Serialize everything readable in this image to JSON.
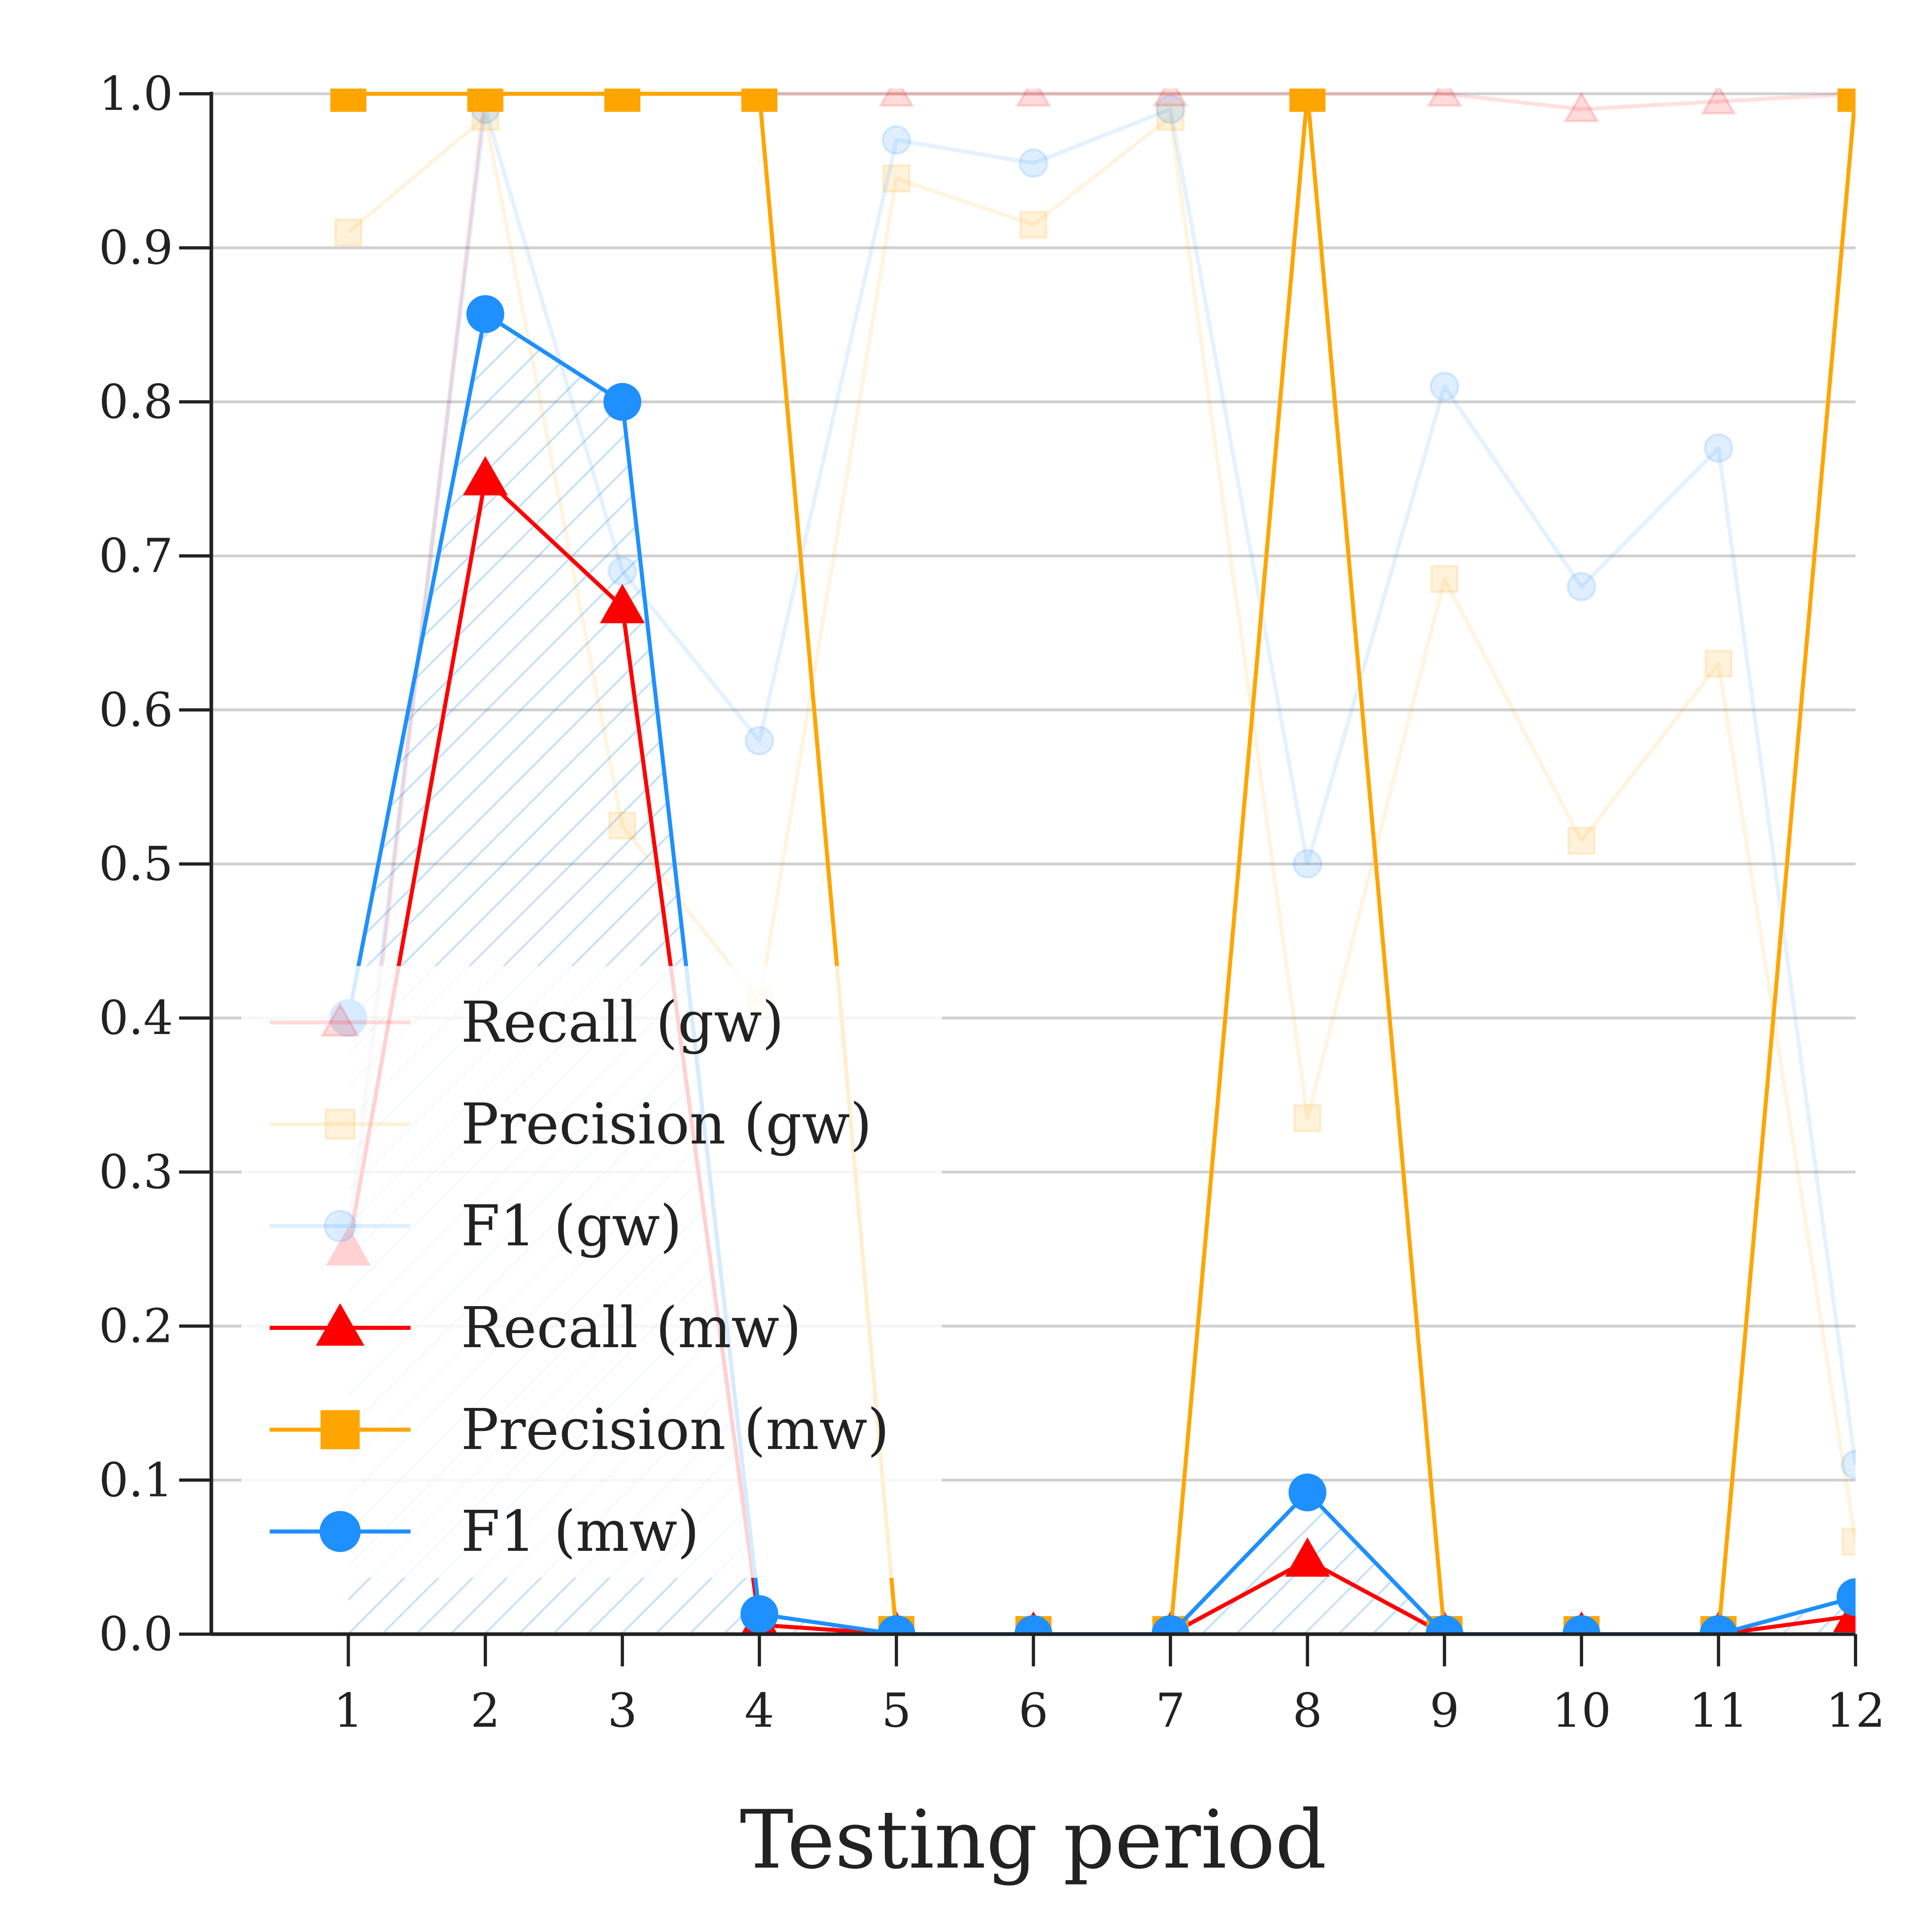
{
  "chart_data": {
    "type": "line",
    "title": "",
    "xlabel": "Testing period",
    "ylabel": "",
    "x": [
      1,
      2,
      3,
      4,
      5,
      6,
      7,
      8,
      9,
      10,
      11,
      12
    ],
    "xlim": [
      0,
      12
    ],
    "ylim": [
      0,
      1
    ],
    "yticks": [
      "0.0",
      "0.1",
      "0.2",
      "0.3",
      "0.4",
      "0.5",
      "0.6",
      "0.7",
      "0.8",
      "0.9",
      "1.0"
    ],
    "xticks": [
      "1",
      "2",
      "3",
      "4",
      "5",
      "6",
      "7",
      "8",
      "9",
      "10",
      "11",
      "12"
    ],
    "grid": "horizontal",
    "legend_position": "lower-left",
    "series": [
      {
        "name": "Recall (gw)",
        "color": "#ff0000",
        "marker": "triangle",
        "faded": true,
        "values": [
          0.25,
          1.0,
          1.0,
          1.0,
          1.0,
          1.0,
          1.0,
          1.0,
          1.0,
          0.99,
          0.995,
          1.0
        ]
      },
      {
        "name": "Precision (gw)",
        "color": "#ffa500",
        "marker": "square",
        "faded": true,
        "values": [
          0.91,
          0.985,
          0.525,
          0.41,
          0.945,
          0.915,
          0.985,
          0.335,
          0.685,
          0.515,
          0.63,
          0.06
        ]
      },
      {
        "name": "F1 (gw)",
        "color": "#1e90ff",
        "marker": "circle",
        "faded": true,
        "values": [
          0.265,
          0.99,
          0.69,
          0.58,
          0.97,
          0.955,
          0.99,
          0.5,
          0.81,
          0.68,
          0.77,
          0.11
        ]
      },
      {
        "name": "Recall (mw)",
        "color": "#ff0000",
        "marker": "triangle",
        "faded": false,
        "values": [
          0.25,
          0.75,
          0.667,
          0.006,
          0.0,
          0.0,
          0.0,
          0.048,
          0.0,
          0.0,
          0.0,
          0.012
        ]
      },
      {
        "name": "Precision (mw)",
        "color": "#ffa500",
        "marker": "square",
        "faded": false,
        "values": [
          1.0,
          1.0,
          1.0,
          1.0,
          0.0,
          0.0,
          0.0,
          1.0,
          0.0,
          0.0,
          0.0,
          1.0
        ]
      },
      {
        "name": "F1 (mw)",
        "color": "#1e90ff",
        "marker": "circle",
        "faded": false,
        "values": [
          0.4,
          0.857,
          0.8,
          0.013,
          0.0,
          0.0,
          0.0,
          0.092,
          0.0,
          0.0,
          0.0,
          0.024
        ]
      }
    ]
  }
}
